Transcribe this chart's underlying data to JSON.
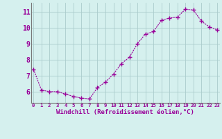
{
  "x": [
    0,
    1,
    2,
    3,
    4,
    5,
    6,
    7,
    8,
    9,
    10,
    11,
    12,
    13,
    14,
    15,
    16,
    17,
    18,
    19,
    20,
    21,
    22,
    23
  ],
  "y": [
    7.4,
    6.1,
    6.0,
    6.0,
    5.85,
    5.7,
    5.6,
    5.55,
    6.25,
    6.6,
    7.1,
    7.75,
    8.15,
    9.0,
    9.6,
    9.75,
    10.45,
    10.6,
    10.65,
    11.15,
    11.1,
    10.4,
    10.05,
    9.85
  ],
  "line_color": "#990099",
  "marker": "+",
  "marker_size": 4,
  "marker_lw": 1.0,
  "bg_color": "#d5f0ee",
  "grid_color": "#aacccc",
  "tick_color": "#990099",
  "xlabel": "Windchill (Refroidissement éolien,°C)",
  "xlabel_color": "#990099",
  "ylim": [
    5.3,
    11.55
  ],
  "yticks": [
    6,
    7,
    8,
    9,
    10,
    11
  ],
  "xticks": [
    0,
    1,
    2,
    3,
    4,
    5,
    6,
    7,
    8,
    9,
    10,
    11,
    12,
    13,
    14,
    15,
    16,
    17,
    18,
    19,
    20,
    21,
    22,
    23
  ],
  "xlim": [
    -0.3,
    23.3
  ]
}
